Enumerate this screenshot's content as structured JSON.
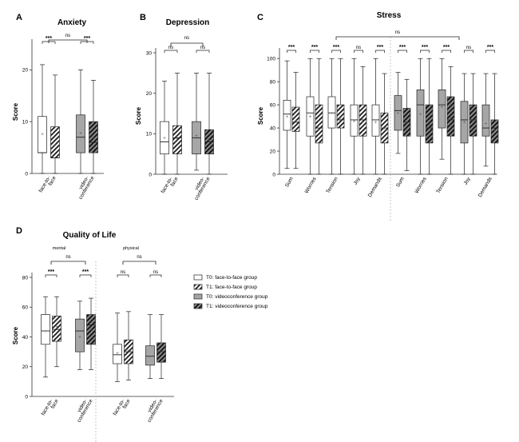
{
  "chart_data": [
    {
      "id": "A",
      "type": "box",
      "letter": "A",
      "title": "Anxiety",
      "ylabel": "Score",
      "ylim": [
        0,
        25
      ],
      "yticks": [
        0,
        10,
        20
      ],
      "categories": [
        "face-to-\nface",
        "video-\nconference"
      ],
      "boxes": [
        {
          "group": "T0 face-to-face",
          "cat": 0,
          "fill": "white",
          "min": 0,
          "q1": 4,
          "median": 4,
          "q3": 11,
          "max": 21,
          "mean": 7.6
        },
        {
          "group": "T1 face-to-face",
          "cat": 0,
          "fill": "hatch",
          "min": 0,
          "q1": 3,
          "median": 3,
          "q3": 9,
          "max": 19,
          "mean": 5.5
        },
        {
          "group": "T0 videoconference",
          "cat": 1,
          "fill": "gray",
          "min": 0,
          "q1": 4,
          "median": 7,
          "q3": 11.3,
          "max": 20,
          "mean": 7.8
        },
        {
          "group": "T1 videoconference",
          "cat": 1,
          "fill": "darkhatch",
          "min": 0,
          "q1": 4,
          "median": 6,
          "q3": 10,
          "max": 18,
          "mean": 7.0
        }
      ],
      "within": [
        "***",
        "***"
      ],
      "between": [
        "ns"
      ]
    },
    {
      "id": "B",
      "type": "box",
      "letter": "B",
      "title": "Depression",
      "ylabel": "Score",
      "ylim": [
        0,
        30
      ],
      "yticks": [
        0,
        10,
        20,
        30
      ],
      "categories": [
        "face-to-\nface",
        "video-\nconference"
      ],
      "boxes": [
        {
          "group": "T0 face-to-face",
          "cat": 0,
          "fill": "white",
          "min": 0,
          "q1": 5,
          "median": 8,
          "q3": 13,
          "max": 23,
          "mean": 9.0
        },
        {
          "group": "T1 face-to-face",
          "cat": 0,
          "fill": "hatch",
          "min": 0,
          "q1": 5,
          "median": 9,
          "q3": 12,
          "max": 25,
          "mean": 8.8
        },
        {
          "group": "T0 videoconference",
          "cat": 1,
          "fill": "gray",
          "min": 1,
          "q1": 5,
          "median": 9,
          "q3": 13,
          "max": 25,
          "mean": 9.5
        },
        {
          "group": "T1 videoconference",
          "cat": 1,
          "fill": "darkhatch",
          "min": 0,
          "q1": 5,
          "median": 8,
          "q3": 11,
          "max": 25,
          "mean": 8.3
        }
      ],
      "within": [
        "ns",
        "ns"
      ],
      "between": [
        "ns"
      ]
    },
    {
      "id": "C",
      "type": "box",
      "letter": "C",
      "title": "Stress",
      "ylabel": "Score",
      "ylim": [
        0,
        105
      ],
      "yticks": [
        0,
        20,
        40,
        60,
        80,
        100
      ],
      "categories": [
        "Sum",
        "Worries",
        "Tension",
        "Joy",
        "Demands",
        "Sum",
        "Worries",
        "Tension",
        "Joy",
        "Demands"
      ],
      "boxes": [
        {
          "group": "T0 face-to-face",
          "cat": 0,
          "fill": "white",
          "min": 5,
          "q1": 38,
          "median": 52,
          "q3": 64,
          "max": 98,
          "mean": 50
        },
        {
          "group": "T1 face-to-face",
          "cat": 0,
          "fill": "hatch",
          "min": 5,
          "q1": 37,
          "median": 45,
          "q3": 58,
          "max": 88,
          "mean": 46
        },
        {
          "group": "T0 face-to-face",
          "cat": 1,
          "fill": "white",
          "min": 0,
          "q1": 33,
          "median": 53,
          "q3": 67,
          "max": 100,
          "mean": 50
        },
        {
          "group": "T1 face-to-face",
          "cat": 1,
          "fill": "hatch",
          "min": 0,
          "q1": 27,
          "median": 40,
          "q3": 60,
          "max": 100,
          "mean": 43
        },
        {
          "group": "T0 face-to-face",
          "cat": 2,
          "fill": "white",
          "min": 0,
          "q1": 40,
          "median": 53,
          "q3": 67,
          "max": 100,
          "mean": 53
        },
        {
          "group": "T1 face-to-face",
          "cat": 2,
          "fill": "hatch",
          "min": 0,
          "q1": 40,
          "median": 47,
          "q3": 60,
          "max": 100,
          "mean": 49
        },
        {
          "group": "T0 face-to-face",
          "cat": 3,
          "fill": "white",
          "min": 0,
          "q1": 33,
          "median": 47,
          "q3": 60,
          "max": 100,
          "mean": 46
        },
        {
          "group": "T1 face-to-face",
          "cat": 3,
          "fill": "hatch",
          "min": 0,
          "q1": 33,
          "median": 47,
          "q3": 60,
          "max": 93,
          "mean": 47
        },
        {
          "group": "T0 face-to-face",
          "cat": 4,
          "fill": "white",
          "min": 0,
          "q1": 33,
          "median": 47,
          "q3": 60,
          "max": 100,
          "mean": 45
        },
        {
          "group": "T1 face-to-face",
          "cat": 4,
          "fill": "hatch",
          "min": 0,
          "q1": 27,
          "median": 40,
          "q3": 53,
          "max": 87,
          "mean": 40
        },
        {
          "group": "T0 videoconference",
          "cat": 5,
          "fill": "gray",
          "min": 18,
          "q1": 38,
          "median": 55,
          "q3": 68,
          "max": 88,
          "mean": 53
        },
        {
          "group": "T1 videoconference",
          "cat": 5,
          "fill": "darkhatch",
          "min": 3,
          "q1": 33,
          "median": 45,
          "q3": 57,
          "max": 82,
          "mean": 45
        },
        {
          "group": "T0 videoconference",
          "cat": 6,
          "fill": "gray",
          "min": 0,
          "q1": 33,
          "median": 60,
          "q3": 73,
          "max": 100,
          "mean": 52
        },
        {
          "group": "T1 videoconference",
          "cat": 6,
          "fill": "darkhatch",
          "min": 0,
          "q1": 27,
          "median": 40,
          "q3": 60,
          "max": 100,
          "mean": 43
        },
        {
          "group": "T0 videoconference",
          "cat": 7,
          "fill": "gray",
          "min": 13,
          "q1": 40,
          "median": 60,
          "q3": 73,
          "max": 100,
          "mean": 58
        },
        {
          "group": "T1 videoconference",
          "cat": 7,
          "fill": "darkhatch",
          "min": 0,
          "q1": 33,
          "median": 47,
          "q3": 67,
          "max": 93,
          "mean": 49
        },
        {
          "group": "T0 videoconference",
          "cat": 8,
          "fill": "gray",
          "min": 0,
          "q1": 27,
          "median": 47,
          "q3": 63,
          "max": 87,
          "mean": 45
        },
        {
          "group": "T1 videoconference",
          "cat": 8,
          "fill": "darkhatch",
          "min": 0,
          "q1": 33,
          "median": 47,
          "q3": 60,
          "max": 87,
          "mean": 46
        },
        {
          "group": "T0 videoconference",
          "cat": 9,
          "fill": "gray",
          "min": 7,
          "q1": 33,
          "median": 40,
          "q3": 60,
          "max": 87,
          "mean": 44
        },
        {
          "group": "T1 videoconference",
          "cat": 9,
          "fill": "darkhatch",
          "min": 0,
          "q1": 27,
          "median": 40,
          "q3": 47,
          "max": 87,
          "mean": 38
        }
      ],
      "within": [
        "***",
        "***",
        "***",
        "ns",
        "***",
        "***",
        "***",
        "***",
        "ns",
        "***"
      ],
      "between": [
        "ns"
      ]
    },
    {
      "id": "D",
      "type": "box",
      "letter": "D",
      "title": "Quality of Life",
      "ylabel": "Score",
      "ylim": [
        0,
        80
      ],
      "yticks": [
        0,
        20,
        40,
        60,
        80
      ],
      "categories": [
        "face-to-\nface",
        "video-\nconference",
        "face-to-\nface",
        "video-\nconference"
      ],
      "subgroups": [
        "mental",
        "physical"
      ],
      "boxes": [
        {
          "group": "T0 face-to-face",
          "cat": 0,
          "fill": "white",
          "min": 13,
          "q1": 35,
          "median": 44,
          "q3": 55,
          "max": 67,
          "mean": 44
        },
        {
          "group": "T1 face-to-face",
          "cat": 0,
          "fill": "hatch",
          "min": 20,
          "q1": 37,
          "median": 45,
          "q3": 54,
          "max": 67,
          "mean": 47
        },
        {
          "group": "T0 videoconference",
          "cat": 1,
          "fill": "gray",
          "min": 18,
          "q1": 30,
          "median": 44,
          "q3": 52,
          "max": 64,
          "mean": 40
        },
        {
          "group": "T1 videoconference",
          "cat": 1,
          "fill": "darkhatch",
          "min": 18,
          "q1": 35,
          "median": 48,
          "q3": 55,
          "max": 66,
          "mean": 45
        },
        {
          "group": "T0 face-to-face",
          "cat": 2,
          "fill": "white",
          "min": 10,
          "q1": 22,
          "median": 28,
          "q3": 35,
          "max": 56,
          "mean": 29
        },
        {
          "group": "T1 face-to-face",
          "cat": 2,
          "fill": "hatch",
          "min": 11,
          "q1": 22,
          "median": 30,
          "q3": 38,
          "max": 57,
          "mean": 31
        },
        {
          "group": "T0 videoconference",
          "cat": 3,
          "fill": "gray",
          "min": 12,
          "q1": 21,
          "median": 27,
          "q3": 34,
          "max": 55,
          "mean": 27
        },
        {
          "group": "T1 videoconference",
          "cat": 3,
          "fill": "darkhatch",
          "min": 12,
          "q1": 23,
          "median": 30,
          "q3": 36,
          "max": 55,
          "mean": 30
        }
      ],
      "within": [
        "***",
        "***",
        "ns",
        "ns"
      ],
      "between": [
        "ns",
        "ns"
      ]
    }
  ],
  "legend": [
    {
      "fill": "white",
      "label": "T0: face-to-face group"
    },
    {
      "fill": "hatch",
      "label": "T1: face-to-face group"
    },
    {
      "fill": "gray",
      "label": "T0: videoconference group"
    },
    {
      "fill": "darkhatch",
      "label": "T1: videoconference group"
    }
  ],
  "colors": {
    "gray": "#a6a6a6",
    "line": "#222222",
    "mean": "#555555",
    "divider": "#b0b0b0"
  }
}
